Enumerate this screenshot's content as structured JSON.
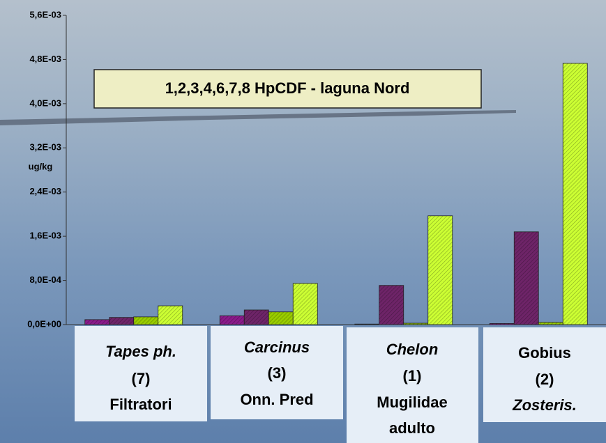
{
  "chart_data": {
    "type": "bar",
    "title": "1,2,3,4,6,7,8 HpCDF - laguna Nord",
    "y_label": "ug/kg",
    "categories": [
      [
        "Tapes ph.",
        "(7)",
        "Filtratori"
      ],
      [
        "Carcinus",
        "(3)",
        "Onn. Pred"
      ],
      [
        "Chelon",
        "(1)",
        "Mugilidae",
        "adulto"
      ],
      [
        "Gobius",
        "(2)",
        "Zosteris."
      ]
    ],
    "series": [
      {
        "color": "#8a1a8a",
        "values": [
          9e-05,
          0.00016,
          1e-05,
          2e-05
        ]
      },
      {
        "color": "#6e2468",
        "values": [
          0.00013,
          0.000265,
          0.00071,
          0.00168
        ]
      },
      {
        "color": "#99cc00",
        "values": [
          0.00014,
          0.00023,
          2.5e-05,
          4e-05
        ]
      },
      {
        "color": "#ccff33",
        "values": [
          0.00034,
          0.000745,
          0.00197,
          0.00473
        ]
      }
    ],
    "ylim": [
      0,
      0.0056
    ],
    "yticks": [
      {
        "value": 0,
        "label": "0,0E+00"
      },
      {
        "value": 0.0008,
        "label": "8,0E-04"
      },
      {
        "value": 0.0016,
        "label": "1,6E-03"
      },
      {
        "value": 0.0024,
        "label": "2,4E-03"
      },
      {
        "value": 0.0032,
        "label": "3,2E-03"
      },
      {
        "value": 0.004,
        "label": "4,0E-03"
      },
      {
        "value": 0.0048,
        "label": "4,8E-03"
      },
      {
        "value": 0.0056,
        "label": "5,6E-03"
      }
    ]
  }
}
